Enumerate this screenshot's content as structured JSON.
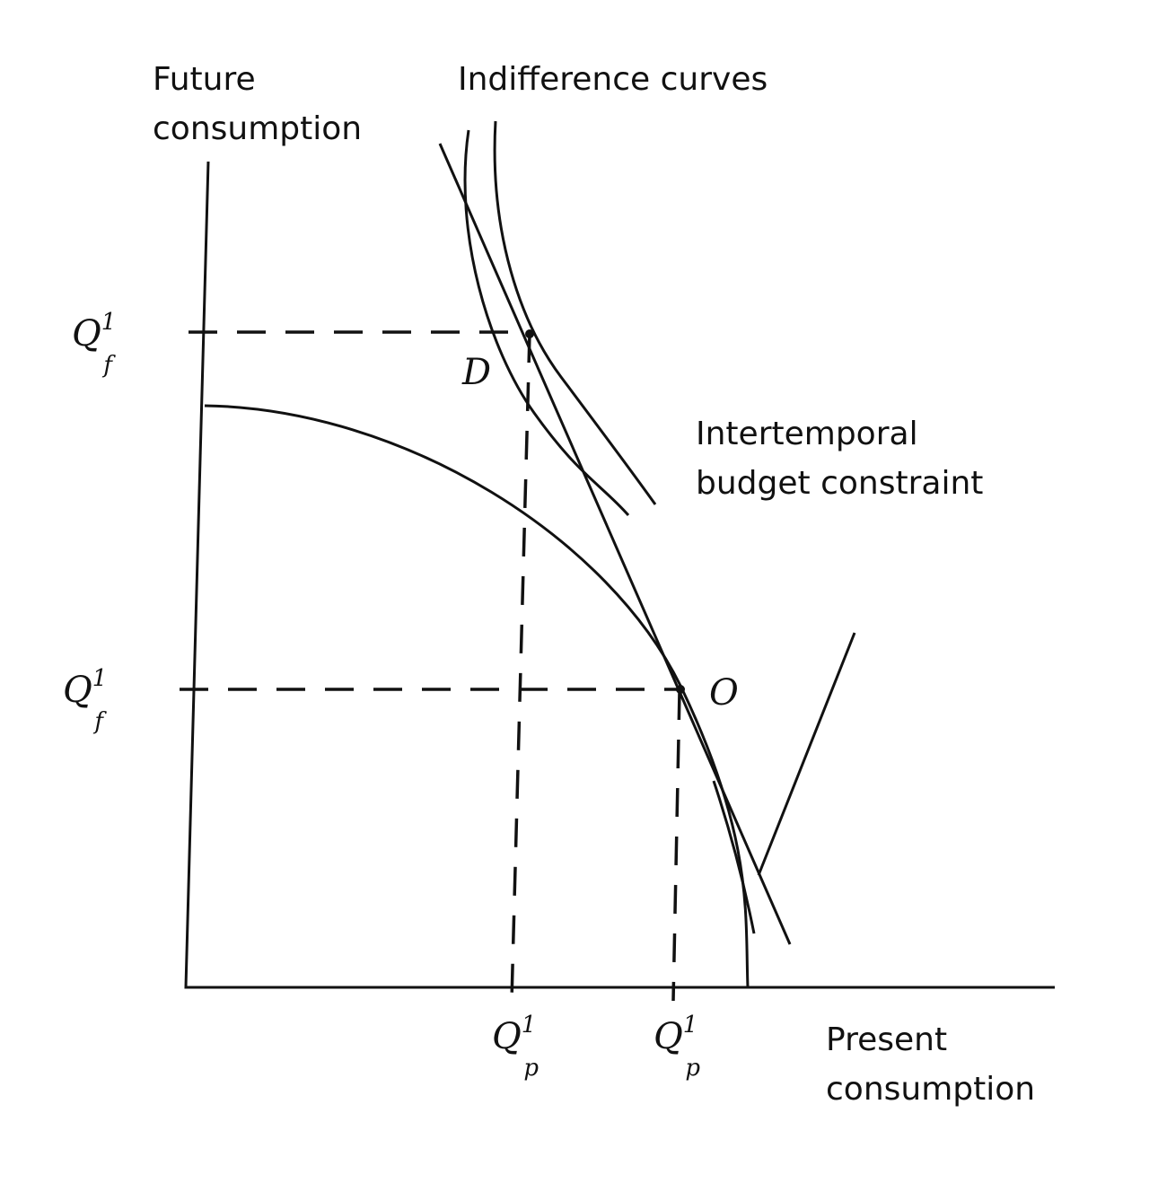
{
  "labels": {
    "y_axis": [
      "Future",
      "consumption"
    ],
    "x_axis": [
      "Present",
      "consumption"
    ],
    "indifference_curves": "Indifference curves",
    "budget_constraint": [
      "Intertemporal",
      "budget constraint"
    ]
  },
  "points": {
    "D": "D",
    "O": "O"
  },
  "axis_marks": {
    "future_upper": {
      "base": "Q",
      "sup": "1",
      "sub": "f"
    },
    "future_lower": {
      "base": "Q",
      "sup": "1",
      "sub": "f"
    },
    "present_left": {
      "base": "Q",
      "sup": "1",
      "sub": "p"
    },
    "present_right": {
      "base": "Q",
      "sup": "1",
      "sub": "p"
    }
  }
}
